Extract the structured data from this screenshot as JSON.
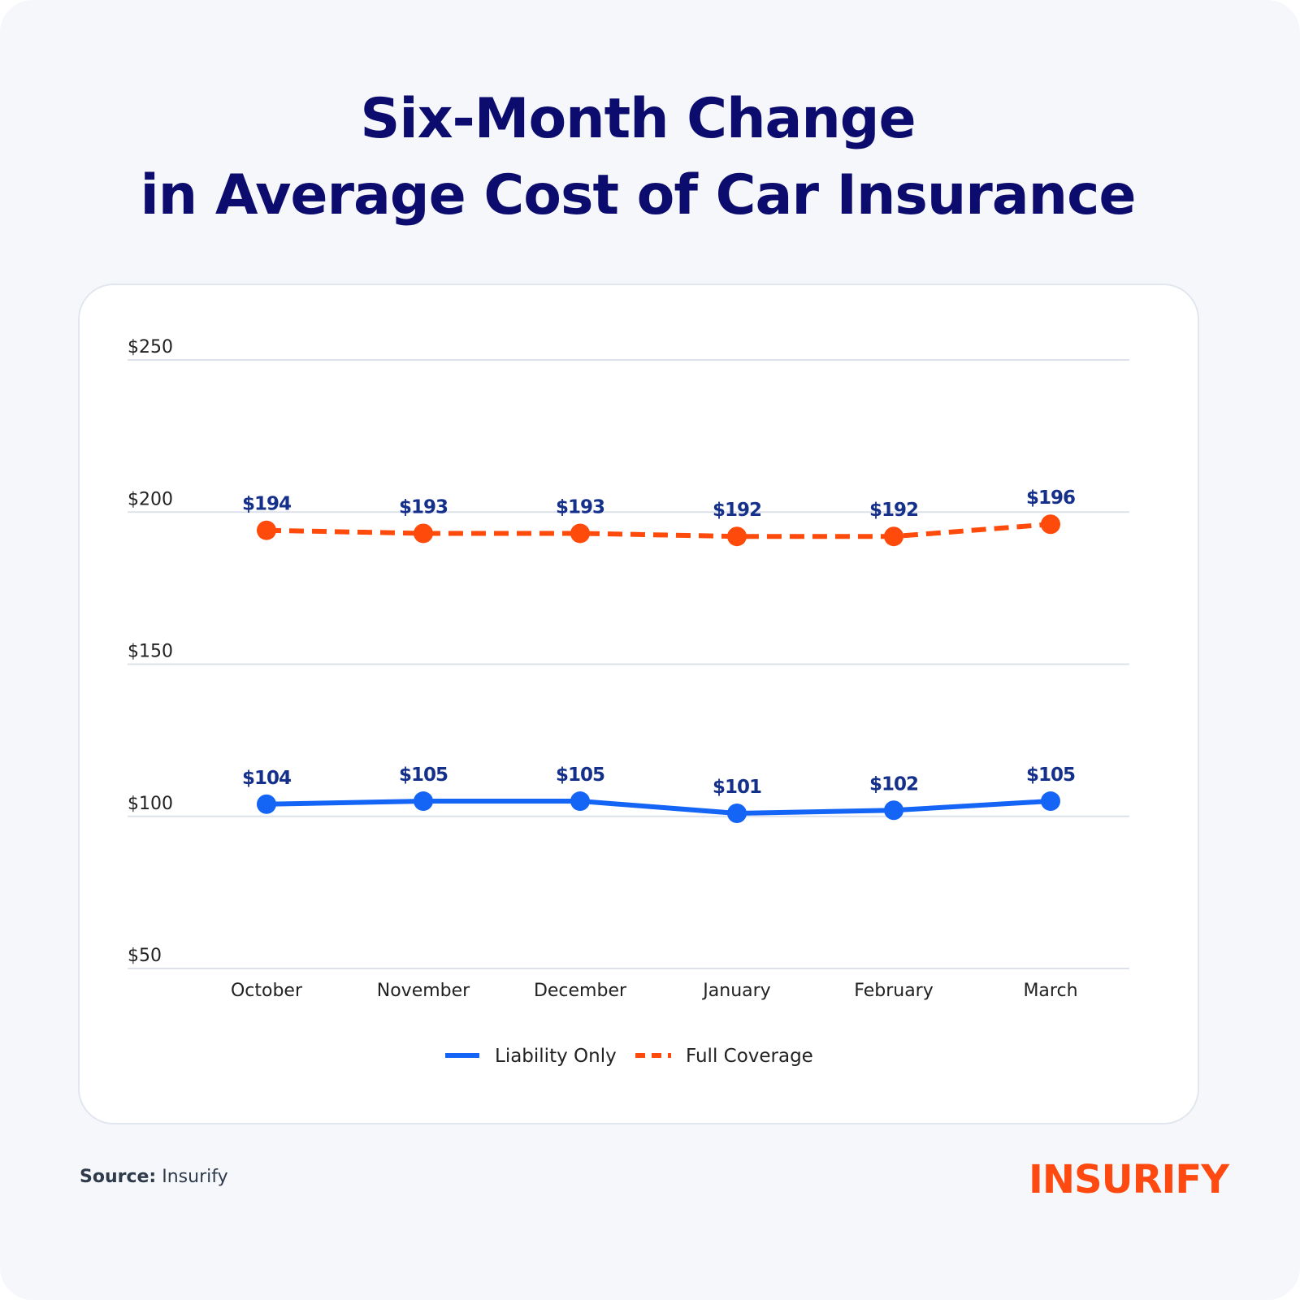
{
  "title_line1": "Six-Month Change",
  "title_line2": "in Average Cost of Car Insurance",
  "source_label": "Source:",
  "source_value": "Insurify",
  "logo": "INSURIFY",
  "chart_data": {
    "type": "line",
    "title": "Six-Month Change in Average Cost of Car Insurance",
    "categories": [
      "October",
      "November",
      "December",
      "January",
      "February",
      "March"
    ],
    "ylim": [
      50,
      250
    ],
    "yticks": [
      50,
      100,
      150,
      200,
      250
    ],
    "ytick_labels": [
      "$50",
      "$100",
      "$150",
      "$200",
      "$250"
    ],
    "grid": true,
    "legend_placement": "bottom-center",
    "series": [
      {
        "name": "Liability Only",
        "style": "solid",
        "color": "#1464f6",
        "values": [
          104,
          105,
          105,
          101,
          102,
          105
        ],
        "labels": [
          "$104",
          "$105",
          "$105",
          "$101",
          "$102",
          "$105"
        ]
      },
      {
        "name": "Full Coverage",
        "style": "dashed",
        "color": "#fe4a0a",
        "values": [
          194,
          193,
          193,
          192,
          192,
          196
        ],
        "labels": [
          "$194",
          "$193",
          "$193",
          "$192",
          "$192",
          "$196"
        ]
      }
    ],
    "label_color": "#15308a"
  }
}
